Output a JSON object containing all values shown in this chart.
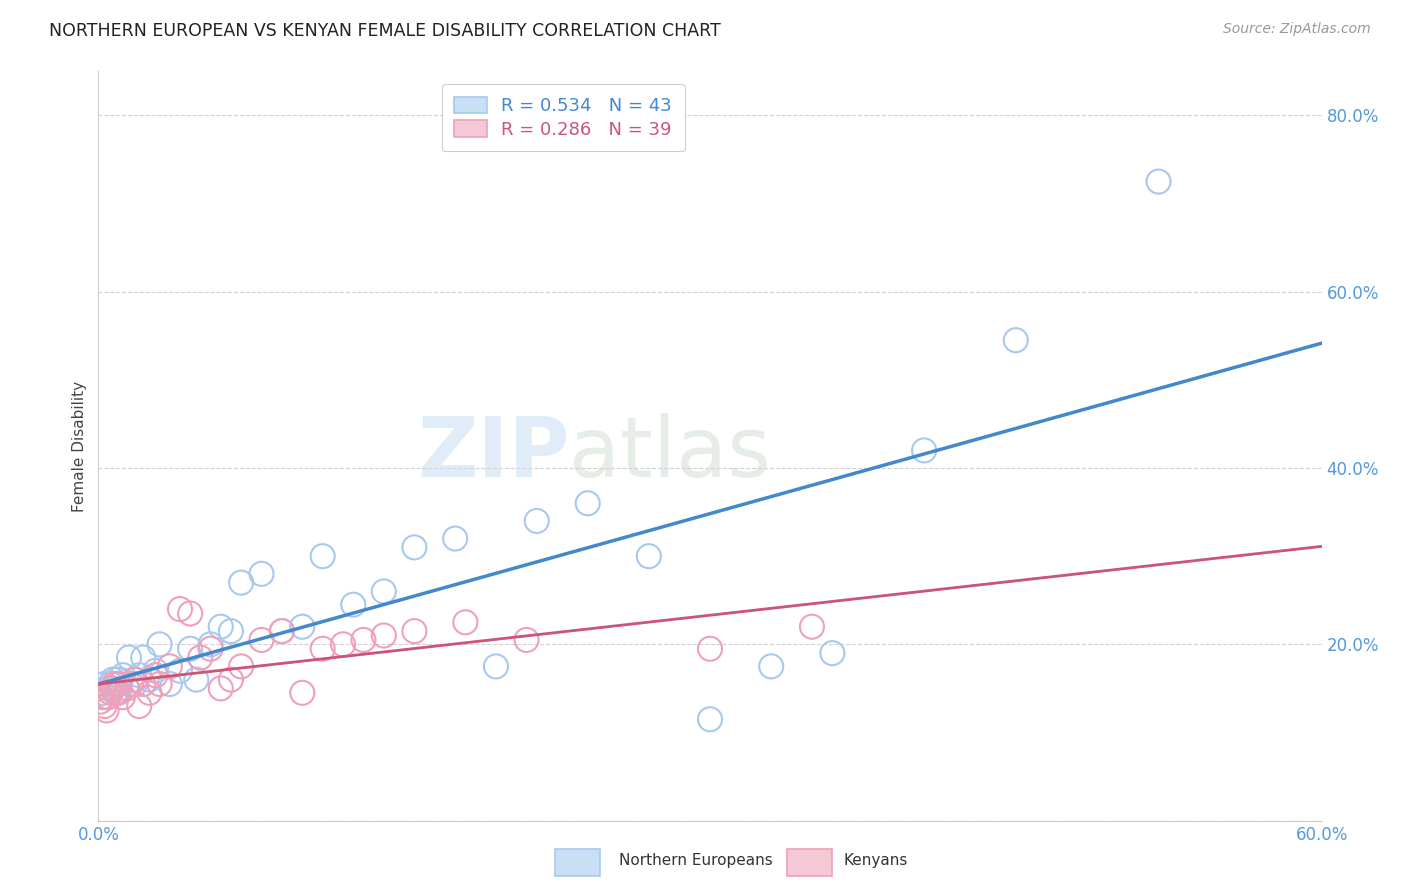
{
  "title": "NORTHERN EUROPEAN VS KENYAN FEMALE DISABILITY CORRELATION CHART",
  "source": "Source: ZipAtlas.com",
  "ylabel": "Female Disability",
  "xlim": [
    0.0,
    0.6
  ],
  "ylim": [
    0.0,
    0.85
  ],
  "xticks": [
    0.0,
    0.1,
    0.2,
    0.3,
    0.4,
    0.5,
    0.6
  ],
  "xticklabels": [
    "0.0%",
    "",
    "",
    "",
    "",
    "",
    "60.0%"
  ],
  "yticks": [
    0.0,
    0.2,
    0.4,
    0.6,
    0.8
  ],
  "yticklabels": [
    "",
    "20.0%",
    "40.0%",
    "60.0%",
    "80.0%"
  ],
  "blue_color": "#a8c8f0",
  "pink_color": "#f0a0b8",
  "blue_line_color": "#4488cc",
  "pink_line_color": "#cc5577",
  "pink_dash_color": "#ccaabb",
  "blue_R": 0.534,
  "blue_N": 43,
  "pink_R": 0.286,
  "pink_N": 39,
  "legend_label_blue": "Northern Europeans",
  "legend_label_pink": "Kenyans",
  "watermark_zip": "ZIP",
  "watermark_atlas": "atlas",
  "background_color": "#ffffff",
  "grid_color": "#cccccc",
  "blue_scatter_x": [
    0.002,
    0.003,
    0.004,
    0.005,
    0.006,
    0.007,
    0.008,
    0.009,
    0.01,
    0.012,
    0.015,
    0.018,
    0.02,
    0.022,
    0.025,
    0.028,
    0.03,
    0.035,
    0.04,
    0.045,
    0.048,
    0.055,
    0.06,
    0.065,
    0.07,
    0.08,
    0.09,
    0.1,
    0.11,
    0.125,
    0.14,
    0.155,
    0.175,
    0.195,
    0.215,
    0.24,
    0.27,
    0.3,
    0.33,
    0.36,
    0.405,
    0.45,
    0.52
  ],
  "blue_scatter_y": [
    0.145,
    0.155,
    0.14,
    0.15,
    0.155,
    0.16,
    0.145,
    0.16,
    0.145,
    0.165,
    0.185,
    0.155,
    0.165,
    0.185,
    0.16,
    0.17,
    0.2,
    0.155,
    0.17,
    0.195,
    0.16,
    0.2,
    0.22,
    0.215,
    0.27,
    0.28,
    0.215,
    0.22,
    0.3,
    0.245,
    0.26,
    0.31,
    0.32,
    0.175,
    0.34,
    0.36,
    0.3,
    0.115,
    0.175,
    0.19,
    0.42,
    0.545,
    0.725
  ],
  "pink_scatter_x": [
    0.001,
    0.002,
    0.003,
    0.004,
    0.005,
    0.006,
    0.007,
    0.008,
    0.009,
    0.01,
    0.012,
    0.014,
    0.016,
    0.018,
    0.02,
    0.022,
    0.025,
    0.028,
    0.03,
    0.035,
    0.04,
    0.045,
    0.05,
    0.055,
    0.06,
    0.065,
    0.07,
    0.08,
    0.09,
    0.1,
    0.11,
    0.12,
    0.13,
    0.14,
    0.155,
    0.18,
    0.21,
    0.3,
    0.35
  ],
  "pink_scatter_y": [
    0.135,
    0.14,
    0.13,
    0.125,
    0.14,
    0.145,
    0.15,
    0.155,
    0.145,
    0.155,
    0.14,
    0.15,
    0.155,
    0.16,
    0.13,
    0.155,
    0.145,
    0.165,
    0.155,
    0.175,
    0.24,
    0.235,
    0.185,
    0.195,
    0.15,
    0.16,
    0.175,
    0.205,
    0.215,
    0.145,
    0.195,
    0.2,
    0.205,
    0.21,
    0.215,
    0.225,
    0.205,
    0.195,
    0.22
  ]
}
